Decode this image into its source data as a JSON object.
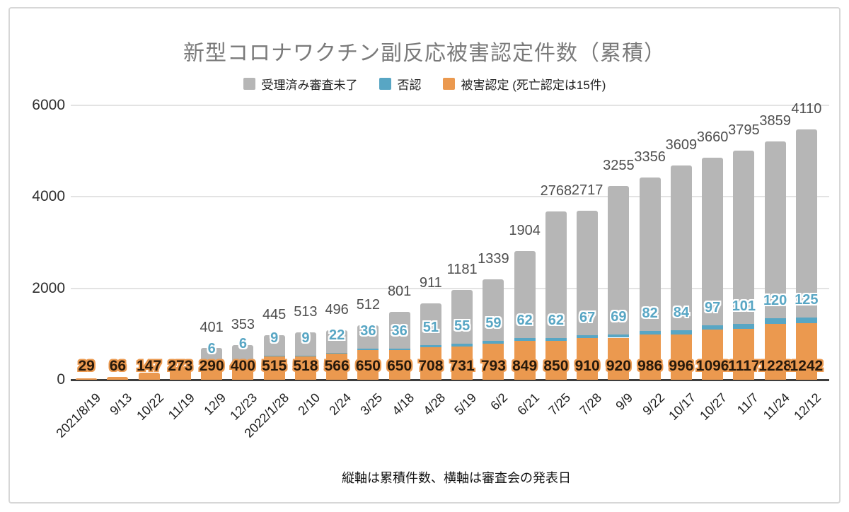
{
  "chart_data": {
    "type": "bar",
    "stacked": true,
    "title": "新型コロナワクチン副反応被害認定件数（累積）",
    "note": "縦軸は累積件数、横軸は審査会の発表日",
    "legend_position": "top",
    "grid": true,
    "ylim": [
      0,
      6000
    ],
    "y_ticks": [
      0,
      2000,
      4000,
      6000
    ],
    "categories": [
      "2021/8/19",
      "9/13",
      "10/22",
      "11/19",
      "12/9",
      "12/23",
      "2022/1/28",
      "2/10",
      "2/24",
      "3/25",
      "4/18",
      "4/28",
      "5/19",
      "6/2",
      "6/21",
      "7/25",
      "7/28",
      "9/9",
      "9/22",
      "10/17",
      "10/27",
      "11/7",
      "11/24",
      "12/12"
    ],
    "series": [
      {
        "key": "pending",
        "name": "受理済み審査未了",
        "color": "#b6b6b6",
        "values": [
          0,
          0,
          0,
          0,
          401,
          353,
          445,
          513,
          496,
          512,
          801,
          911,
          1181,
          1339,
          1904,
          2768,
          2717,
          3255,
          3356,
          3609,
          3660,
          3795,
          3859,
          4110
        ]
      },
      {
        "key": "denied",
        "name": "否認",
        "color": "#58a6c4",
        "values": [
          0,
          0,
          0,
          0,
          6,
          6,
          9,
          9,
          22,
          36,
          36,
          51,
          55,
          59,
          62,
          62,
          67,
          69,
          82,
          84,
          97,
          101,
          120,
          125
        ]
      },
      {
        "key": "certified",
        "name": "被害認定 (死亡認定は15件)",
        "color": "#eb994f",
        "values": [
          29,
          66,
          147,
          273,
          290,
          400,
          515,
          518,
          566,
          650,
          650,
          708,
          731,
          793,
          849,
          850,
          910,
          920,
          986,
          996,
          1096,
          1117,
          1228,
          1242
        ]
      }
    ]
  }
}
